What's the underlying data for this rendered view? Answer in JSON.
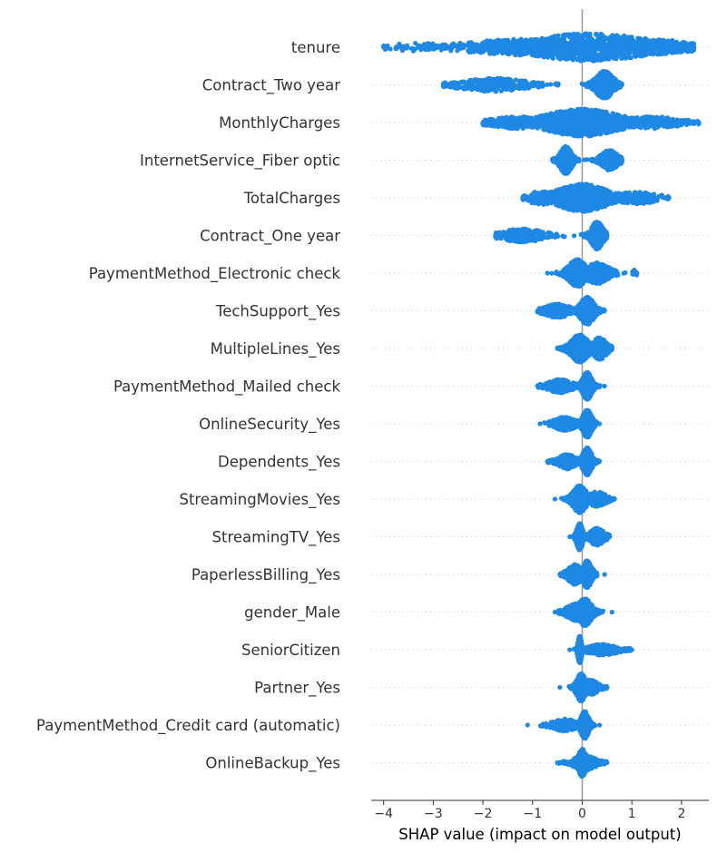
{
  "chart_data": {
    "type": "scatter",
    "subtype": "shap-beeswarm",
    "xlabel": "SHAP value (impact on model output)",
    "xlim": [
      -4.25,
      2.55
    ],
    "xticks": [
      -4,
      -3,
      -2,
      -1,
      0,
      1,
      2
    ],
    "xtick_labels": [
      "−4",
      "−3",
      "−2",
      "−1",
      "0",
      "1",
      "2"
    ],
    "point_color": "#1E88E5",
    "zero_line_color": "#999999",
    "grid": false,
    "features": [
      {
        "name": "tenure",
        "min": -4.0,
        "max": 2.25,
        "clusters": [
          {
            "center": 0.15,
            "spread": 1.1,
            "n": 900,
            "width": 1.0
          },
          {
            "center": -1.2,
            "spread": 1.0,
            "n": 400,
            "width": 0.55
          },
          {
            "center": -3.3,
            "spread": 0.5,
            "n": 40,
            "width": 0.25
          },
          {
            "center": 1.6,
            "spread": 0.5,
            "n": 250,
            "width": 0.5
          }
        ]
      },
      {
        "name": "Contract_Two year",
        "min": -2.8,
        "max": 0.8,
        "clusters": [
          {
            "center": -1.8,
            "spread": 0.55,
            "n": 300,
            "width": 0.45
          },
          {
            "center": 0.45,
            "spread": 0.15,
            "n": 600,
            "width": 1.0
          }
        ]
      },
      {
        "name": "MonthlyCharges",
        "min": -2.0,
        "max": 2.35,
        "clusters": [
          {
            "center": 0.0,
            "spread": 0.65,
            "n": 1100,
            "width": 1.0
          },
          {
            "center": -1.3,
            "spread": 0.45,
            "n": 200,
            "width": 0.4
          },
          {
            "center": 1.4,
            "spread": 0.45,
            "n": 200,
            "width": 0.4
          }
        ]
      },
      {
        "name": "InternetService_Fiber optic",
        "min": -0.6,
        "max": 0.8,
        "clusters": [
          {
            "center": -0.33,
            "spread": 0.1,
            "n": 500,
            "width": 1.0
          },
          {
            "center": 0.55,
            "spread": 0.14,
            "n": 400,
            "width": 0.7
          }
        ]
      },
      {
        "name": "TotalCharges",
        "min": -1.2,
        "max": 1.75,
        "clusters": [
          {
            "center": 0.0,
            "spread": 0.45,
            "n": 1100,
            "width": 1.0
          },
          {
            "center": 1.1,
            "spread": 0.35,
            "n": 120,
            "width": 0.4
          },
          {
            "center": -0.8,
            "spread": 0.25,
            "n": 150,
            "width": 0.45
          }
        ]
      },
      {
        "name": "Contract_One year",
        "min": -1.75,
        "max": 0.5,
        "clusters": [
          {
            "center": 0.3,
            "spread": 0.1,
            "n": 650,
            "width": 1.0
          },
          {
            "center": -1.2,
            "spread": 0.35,
            "n": 220,
            "width": 0.45
          }
        ]
      },
      {
        "name": "PaymentMethod_Electronic check",
        "min": -0.7,
        "max": 1.1,
        "clusters": [
          {
            "center": -0.1,
            "spread": 0.15,
            "n": 550,
            "width": 1.0
          },
          {
            "center": 0.3,
            "spread": 0.2,
            "n": 350,
            "width": 0.75
          },
          {
            "center": 1.05,
            "spread": 0.04,
            "n": 10,
            "width": 0.2
          }
        ]
      },
      {
        "name": "TechSupport_Yes",
        "min": -0.9,
        "max": 0.45,
        "clusters": [
          {
            "center": 0.1,
            "spread": 0.12,
            "n": 650,
            "width": 1.0
          },
          {
            "center": -0.5,
            "spread": 0.22,
            "n": 250,
            "width": 0.45
          }
        ]
      },
      {
        "name": "MultipleLines_Yes",
        "min": -0.5,
        "max": 0.6,
        "clusters": [
          {
            "center": -0.05,
            "spread": 0.15,
            "n": 500,
            "width": 1.0
          },
          {
            "center": 0.35,
            "spread": 0.12,
            "n": 300,
            "width": 0.8
          }
        ]
      },
      {
        "name": "PaymentMethod_Mailed check",
        "min": -0.9,
        "max": 0.45,
        "clusters": [
          {
            "center": 0.1,
            "spread": 0.08,
            "n": 550,
            "width": 1.0
          },
          {
            "center": -0.45,
            "spread": 0.2,
            "n": 250,
            "width": 0.45
          }
        ]
      },
      {
        "name": "OnlineSecurity_Yes",
        "min": -0.85,
        "max": 0.35,
        "clusters": [
          {
            "center": 0.1,
            "spread": 0.08,
            "n": 550,
            "width": 1.0
          },
          {
            "center": -0.35,
            "spread": 0.18,
            "n": 250,
            "width": 0.45
          }
        ]
      },
      {
        "name": "Dependents_Yes",
        "min": -0.7,
        "max": 0.35,
        "clusters": [
          {
            "center": 0.1,
            "spread": 0.08,
            "n": 550,
            "width": 1.0
          },
          {
            "center": -0.3,
            "spread": 0.15,
            "n": 250,
            "width": 0.5
          }
        ]
      },
      {
        "name": "StreamingMovies_Yes",
        "min": -0.55,
        "max": 0.65,
        "clusters": [
          {
            "center": -0.05,
            "spread": 0.12,
            "n": 550,
            "width": 1.0
          },
          {
            "center": 0.3,
            "spread": 0.15,
            "n": 250,
            "width": 0.5
          }
        ]
      },
      {
        "name": "StreamingTV_Yes",
        "min": -0.25,
        "max": 0.55,
        "clusters": [
          {
            "center": -0.05,
            "spread": 0.05,
            "n": 450,
            "width": 1.0
          },
          {
            "center": 0.3,
            "spread": 0.12,
            "n": 300,
            "width": 0.6
          }
        ]
      },
      {
        "name": "PaperlessBilling_Yes",
        "min": -0.45,
        "max": 0.45,
        "clusters": [
          {
            "center": 0.1,
            "spread": 0.08,
            "n": 450,
            "width": 1.0
          },
          {
            "center": -0.15,
            "spread": 0.12,
            "n": 350,
            "width": 0.7
          }
        ]
      },
      {
        "name": "gender_Male",
        "min": -0.55,
        "max": 0.6,
        "clusters": [
          {
            "center": 0.05,
            "spread": 0.12,
            "n": 550,
            "width": 1.0
          },
          {
            "center": -0.1,
            "spread": 0.18,
            "n": 300,
            "width": 0.6
          }
        ]
      },
      {
        "name": "SeniorCitizen",
        "min": -0.25,
        "max": 1.0,
        "clusters": [
          {
            "center": -0.05,
            "spread": 0.03,
            "n": 600,
            "width": 1.0
          },
          {
            "center": 0.4,
            "spread": 0.25,
            "n": 250,
            "width": 0.35
          }
        ]
      },
      {
        "name": "Partner_Yes",
        "min": -0.45,
        "max": 0.5,
        "clusters": [
          {
            "center": -0.02,
            "spread": 0.08,
            "n": 550,
            "width": 1.0
          },
          {
            "center": 0.15,
            "spread": 0.15,
            "n": 250,
            "width": 0.5
          }
        ]
      },
      {
        "name": "PaymentMethod_Credit card (automatic)",
        "min": -1.1,
        "max": 0.35,
        "clusters": [
          {
            "center": 0.05,
            "spread": 0.07,
            "n": 550,
            "width": 1.0
          },
          {
            "center": -0.35,
            "spread": 0.2,
            "n": 220,
            "width": 0.4
          }
        ]
      },
      {
        "name": "OnlineBackup_Yes",
        "min": -0.5,
        "max": 0.5,
        "clusters": [
          {
            "center": 0.0,
            "spread": 0.07,
            "n": 550,
            "width": 1.0
          },
          {
            "center": 0.05,
            "spread": 0.18,
            "n": 300,
            "width": 0.5
          }
        ]
      }
    ]
  }
}
